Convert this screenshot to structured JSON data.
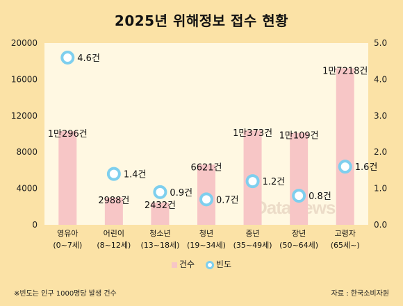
{
  "title": "2025년 위해정보 접수 현황",
  "chart_data": {
    "type": "bar",
    "categories": [
      {
        "line1": "영유아",
        "line2": "(0~7세)"
      },
      {
        "line1": "어린이",
        "line2": "(8~12세)"
      },
      {
        "line1": "청소년",
        "line2": "(13~18세)"
      },
      {
        "line1": "청년",
        "line2": "(19~34세)"
      },
      {
        "line1": "중년",
        "line2": "(35~49세)"
      },
      {
        "line1": "장년",
        "line2": "(50~64세)"
      },
      {
        "line1": "고령자",
        "line2": "(65세~)"
      }
    ],
    "series": [
      {
        "name": "건수",
        "type": "bar",
        "axis": "left",
        "values": [
          10296,
          2988,
          2432,
          6621,
          10373,
          10109,
          17218
        ],
        "labels": [
          "1만296건",
          "2988건",
          "2432건",
          "6621건",
          "1만373건",
          "1만109건",
          "1만7218건"
        ],
        "color": "#f7c6c6"
      },
      {
        "name": "빈도",
        "type": "scatter",
        "axis": "right",
        "values": [
          4.6,
          1.4,
          0.9,
          0.7,
          1.2,
          0.8,
          1.6
        ],
        "labels": [
          "4.6건",
          "1.4건",
          "0.9건",
          "0.7건",
          "1.2건",
          "0.8건",
          "1.6건"
        ],
        "color": "#7ecfee"
      }
    ],
    "y_left": {
      "ylim": [
        0,
        20000
      ],
      "ticks": [
        "0",
        "4000",
        "8000",
        "12000",
        "16000",
        "20000"
      ]
    },
    "y_right": {
      "ylim": [
        0,
        5.0
      ],
      "ticks": [
        "0.0",
        "1.0",
        "2.0",
        "3.0",
        "4.0",
        "5.0"
      ]
    },
    "grid": false,
    "legend_position": "bottom"
  },
  "footer": {
    "note": "※빈도는 인구 1000명당 발생 건수",
    "source": "자료 : 한국소비자원"
  },
  "watermark": "DataNews"
}
